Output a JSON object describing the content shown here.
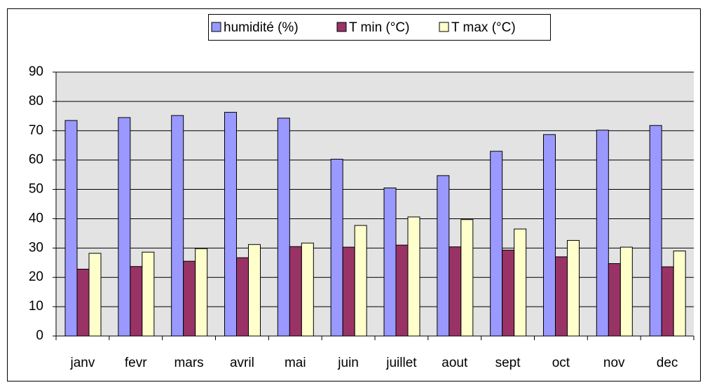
{
  "chart_data": {
    "type": "bar",
    "categories": [
      "janv",
      "fevr",
      "mars",
      "avril",
      "mai",
      "juin",
      "juillet",
      "aout",
      "sept",
      "oct",
      "nov",
      "dec"
    ],
    "series": [
      {
        "name": "humidité (%)",
        "color": "#9999ff",
        "values": [
          73.5,
          74.5,
          75.2,
          76.3,
          74.3,
          60.3,
          50.5,
          54.7,
          63,
          68.7,
          70.2,
          71.8
        ]
      },
      {
        "name": "T min (°C)",
        "color": "#993366",
        "values": [
          22.8,
          23.7,
          25.5,
          26.7,
          30.5,
          30.3,
          31,
          30.4,
          29.3,
          27,
          24.7,
          23.6
        ]
      },
      {
        "name": "T max (°C)",
        "color": "#ffffcc",
        "values": [
          28.2,
          28.6,
          29.8,
          31.2,
          31.7,
          37.7,
          40.6,
          39.7,
          36.5,
          32.6,
          30.3,
          29
        ]
      }
    ],
    "ylim": [
      0,
      90
    ],
    "yticks": [
      0,
      10,
      20,
      30,
      40,
      50,
      60,
      70,
      80,
      90
    ],
    "grid": true,
    "legend": "top"
  }
}
